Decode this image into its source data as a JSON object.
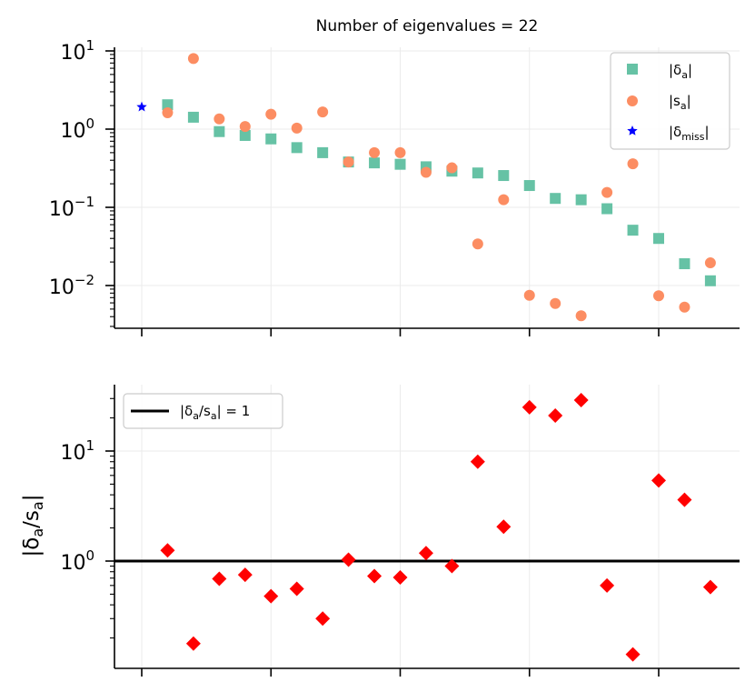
{
  "chart_data": [
    {
      "type": "scatter",
      "title": "Number of eigenvalues = 22",
      "yscale": "log",
      "ylim": [
        0.0028,
        11
      ],
      "xlim": [
        -1,
        23
      ],
      "ytick_labels": [
        {
          "base": "10",
          "exp": "1",
          "value": 10
        },
        {
          "base": "10",
          "exp": "0",
          "value": 1
        },
        {
          "base": "10",
          "exp": "−1",
          "value": 0.1
        },
        {
          "base": "10",
          "exp": "−2",
          "value": 0.01
        }
      ],
      "xticks": [
        0,
        5,
        10,
        15,
        20
      ],
      "grid": true,
      "legend_position": "top-right",
      "series": [
        {
          "name": "delta",
          "label_main": "|δ",
          "label_sub": "a",
          "label_end": "|",
          "marker": "square",
          "color": "#66c2a5",
          "x": [
            1,
            2,
            3,
            4,
            5,
            6,
            7,
            8,
            9,
            10,
            11,
            12,
            13,
            14,
            15,
            16,
            17,
            18,
            19,
            20,
            21,
            22
          ],
          "y": [
            2.05,
            1.42,
            0.93,
            0.83,
            0.75,
            0.58,
            0.5,
            0.38,
            0.37,
            0.355,
            0.33,
            0.29,
            0.275,
            0.255,
            0.19,
            0.13,
            0.125,
            0.096,
            0.051,
            0.04,
            0.019,
            0.0115
          ]
        },
        {
          "name": "s",
          "label_main": "|s",
          "label_sub": "a",
          "label_end": "|",
          "marker": "circle",
          "color": "#fc8d62",
          "x": [
            1,
            2,
            3,
            4,
            5,
            6,
            7,
            8,
            9,
            10,
            11,
            12,
            13,
            14,
            15,
            16,
            17,
            18,
            19,
            20,
            21,
            22
          ],
          "y": [
            1.62,
            8.0,
            1.35,
            1.08,
            1.55,
            1.03,
            1.66,
            0.38,
            0.5,
            0.5,
            0.28,
            0.32,
            0.034,
            0.125,
            0.0075,
            0.0059,
            0.0041,
            0.155,
            0.36,
            0.0074,
            0.0053,
            0.0195
          ]
        },
        {
          "name": "delta_miss",
          "label_main": "|δ",
          "label_sub": "miss",
          "label_end": "|",
          "marker": "star",
          "color": "#0000ff",
          "x": [
            0
          ],
          "y": [
            1.92
          ]
        }
      ]
    },
    {
      "type": "scatter",
      "title": "",
      "yscale": "log",
      "ylim": [
        0.12,
        36
      ],
      "xlim": [
        -1,
        23
      ],
      "ylabel_main": "|δ",
      "ylabel_sub1": "a",
      "ylabel_mid": "/s",
      "ylabel_sub2": "a",
      "ylabel_end": "|",
      "ytick_labels": [
        {
          "base": "10",
          "exp": "1",
          "value": 10
        },
        {
          "base": "10",
          "exp": "0",
          "value": 1
        }
      ],
      "xticks": [
        0,
        5,
        10,
        15,
        20
      ],
      "grid": true,
      "legend_position": "top-left",
      "reference_line": {
        "y": 1,
        "color": "#000000",
        "label_main": "|δ",
        "label_sub1": "a",
        "label_mid": "/s",
        "label_sub2": "a",
        "label_end": "| = 1"
      },
      "series": [
        {
          "name": "ratio",
          "marker": "diamond",
          "color": "#ff0000",
          "x": [
            1,
            2,
            3,
            4,
            5,
            6,
            7,
            8,
            9,
            10,
            11,
            12,
            13,
            14,
            15,
            16,
            17,
            18,
            19,
            20,
            21,
            22
          ],
          "y": [
            1.25,
            0.178,
            0.69,
            0.75,
            0.48,
            0.56,
            0.3,
            1.03,
            0.73,
            0.71,
            1.18,
            0.9,
            8.0,
            2.05,
            25.0,
            21.0,
            29.0,
            0.6,
            0.142,
            5.4,
            3.6,
            0.58
          ]
        }
      ]
    }
  ]
}
